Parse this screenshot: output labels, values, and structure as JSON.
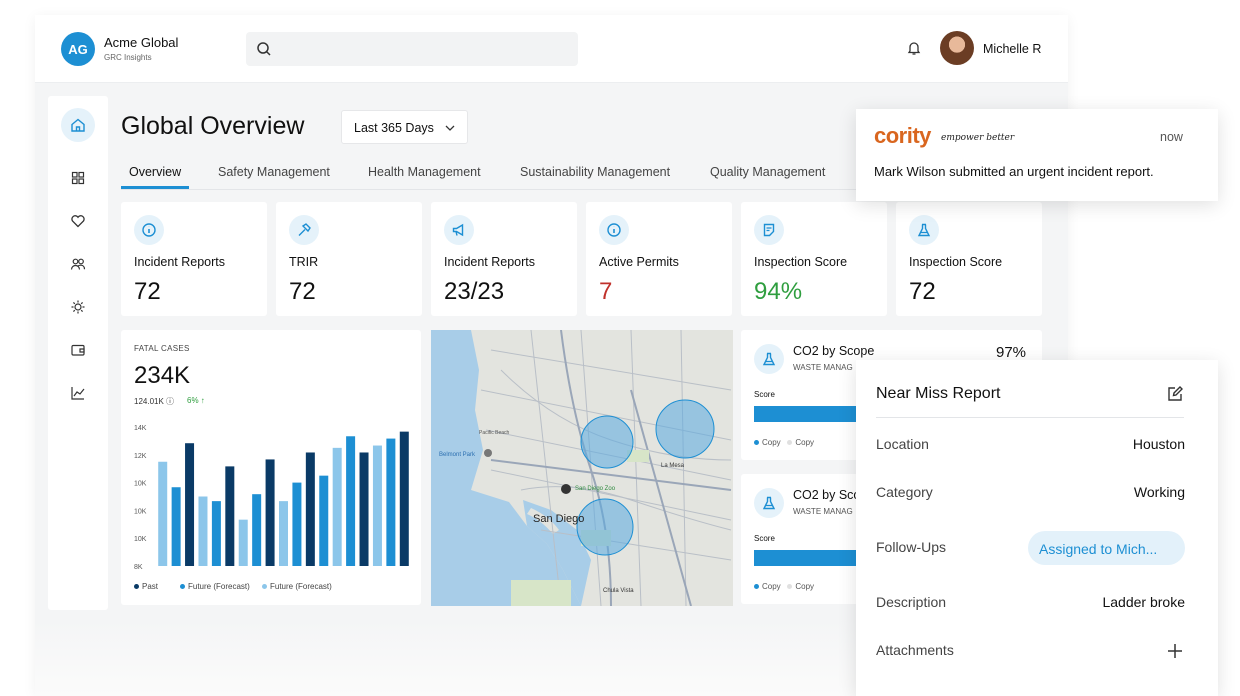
{
  "header": {
    "initials": "AG",
    "org_name": "Acme Global",
    "org_sub": "GRC Insights",
    "search_placeholder": "",
    "user_name": "Michelle R"
  },
  "sidebar": {
    "items": [
      "home-icon",
      "grid-icon",
      "heart-icon",
      "people-icon",
      "sun-icon",
      "wallet-icon",
      "chart-icon"
    ]
  },
  "page": {
    "title": "Global Overview",
    "date_range": "Last 365 Days"
  },
  "tabs": [
    {
      "label": "Overview",
      "active": true
    },
    {
      "label": "Safety Management"
    },
    {
      "label": "Health Management"
    },
    {
      "label": "Sustainability Management"
    },
    {
      "label": "Quality Management"
    }
  ],
  "stats": [
    {
      "label": "Incident Reports",
      "value": "72",
      "icon": "info-icon",
      "color": "#111111"
    },
    {
      "label": "TRIR",
      "value": "72",
      "icon": "hammer-icon",
      "color": "#111111"
    },
    {
      "label": "Incident Reports",
      "value": "23/23",
      "icon": "megaphone-icon",
      "color": "#111111"
    },
    {
      "label": "Active Permits",
      "value": "7",
      "icon": "info-icon",
      "color": "#c0312b"
    },
    {
      "label": "Inspection Score",
      "value": "94%",
      "icon": "document-icon",
      "color": "#2f9e3f"
    },
    {
      "label": "Inspection Score",
      "value": "72",
      "icon": "flask-icon",
      "color": "#111111"
    }
  ],
  "chart_data": {
    "type": "bar",
    "title": "FATAL CASES",
    "headline": "234K",
    "subvalue": "124.01K",
    "change": "6%",
    "yticks": [
      "14K",
      "12K",
      "10K",
      "10K",
      "10K",
      "8K"
    ],
    "ylim": [
      8,
      14
    ],
    "legend": [
      "Past",
      "Future (Forecast)",
      "Future (Forecast)"
    ],
    "colors": [
      "#0a3a66",
      "#1d8fd3",
      "#8cc6ea"
    ],
    "bars": [
      {
        "series": 2,
        "value": 12.5
      },
      {
        "series": 1,
        "value": 11.4
      },
      {
        "series": 0,
        "value": 13.3
      },
      {
        "series": 2,
        "value": 11.0
      },
      {
        "series": 1,
        "value": 10.8
      },
      {
        "series": 0,
        "value": 12.3
      },
      {
        "series": 2,
        "value": 10.0
      },
      {
        "series": 1,
        "value": 11.1
      },
      {
        "series": 0,
        "value": 12.6
      },
      {
        "series": 2,
        "value": 10.8
      },
      {
        "series": 1,
        "value": 11.6
      },
      {
        "series": 0,
        "value": 12.9
      },
      {
        "series": 1,
        "value": 11.9
      },
      {
        "series": 2,
        "value": 13.1
      },
      {
        "series": 1,
        "value": 13.6
      },
      {
        "series": 0,
        "value": 12.9
      },
      {
        "series": 2,
        "value": 13.2
      },
      {
        "series": 1,
        "value": 13.5
      },
      {
        "series": 0,
        "value": 13.8
      }
    ]
  },
  "map": {
    "city": "San Diego",
    "labels": [
      "Belmont Park",
      "San Diego Zoo",
      "La Mesa",
      "Chula Vista",
      "Pacific Beach"
    ]
  },
  "mini_cards": [
    {
      "title": "CO2 by Scope",
      "subtitle": "WASTE MANAG",
      "percent": "97%",
      "score_label": "Score",
      "legend_a": "Copy",
      "legend_b": "Copy"
    },
    {
      "title": "CO2 by Sco",
      "subtitle": "WASTE MANAG",
      "percent": "",
      "score_label": "Score",
      "legend_a": "Copy",
      "legend_b": "Copy"
    }
  ],
  "notification": {
    "logo": "cority",
    "tagline": "empower better",
    "time": "now",
    "message": "Mark Wilson submitted an urgent incident report."
  },
  "report": {
    "title": "Near Miss Report",
    "location_label": "Location",
    "location_value": "Houston",
    "category_label": "Category",
    "category_value": "Working",
    "followups_label": "Follow-Ups",
    "followups_value": "Assigned to Mich...",
    "description_label": "Description",
    "description_value": "Ladder broke",
    "attachments_label": "Attachments"
  },
  "colors": {
    "accent": "#1d8fd3",
    "brand": "#d9661f"
  }
}
